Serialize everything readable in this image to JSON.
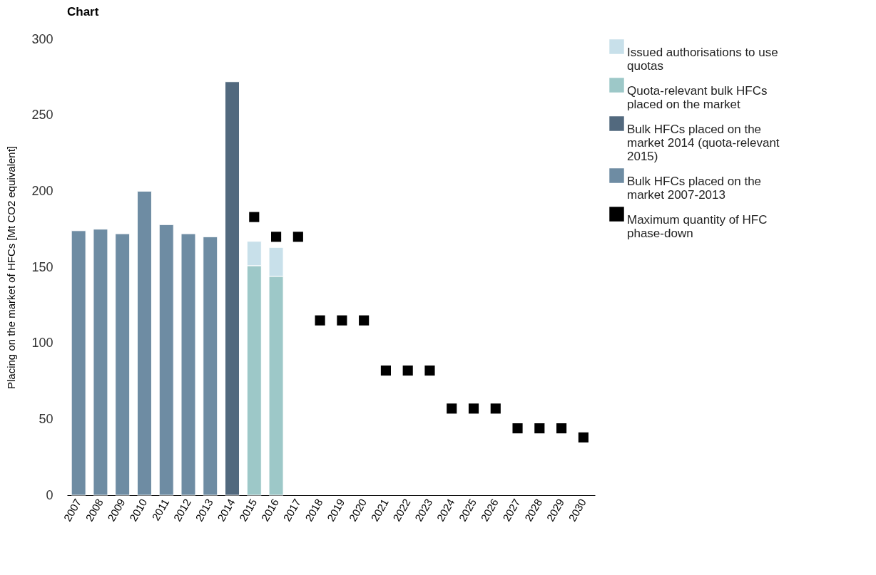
{
  "chart_data": {
    "type": "bar",
    "title": "Chart",
    "ylabel": "Placing on the market of HFCs [Mt CO2 equivalent]",
    "categories": [
      "2007",
      "2008",
      "2009",
      "2010",
      "2011",
      "2012",
      "2013",
      "2014",
      "2015",
      "2016",
      "2017",
      "2018",
      "2019",
      "2020",
      "2021",
      "2022",
      "2023",
      "2024",
      "2025",
      "2026",
      "2027",
      "2028",
      "2029",
      "2030"
    ],
    "stacked": true,
    "series": [
      {
        "name": "Bulk HFCs placed on the market 2007-2013",
        "color": "#6e8ca3",
        "values": [
          174,
          175,
          172,
          200,
          178,
          172,
          170,
          null,
          null,
          null,
          null,
          null,
          null,
          null,
          null,
          null,
          null,
          null,
          null,
          null,
          null,
          null,
          null,
          null
        ]
      },
      {
        "name": "Bulk HFCs placed on the market 2014 (quota-relevant 2015)",
        "color": "#52697e",
        "values": [
          null,
          null,
          null,
          null,
          null,
          null,
          null,
          272,
          null,
          null,
          null,
          null,
          null,
          null,
          null,
          null,
          null,
          null,
          null,
          null,
          null,
          null,
          null,
          null
        ]
      },
      {
        "name": "Quota-relevant bulk HFCs placed on the market",
        "color": "#9dc8c8",
        "values": [
          null,
          null,
          null,
          null,
          null,
          null,
          null,
          null,
          151,
          144,
          null,
          null,
          null,
          null,
          null,
          null,
          null,
          null,
          null,
          null,
          null,
          null,
          null,
          null
        ]
      },
      {
        "name": "Issued authorisations to use quotas",
        "color": "#c8e0ea",
        "values": [
          null,
          null,
          null,
          null,
          null,
          null,
          null,
          null,
          16,
          19,
          null,
          null,
          null,
          null,
          null,
          null,
          null,
          null,
          null,
          null,
          null,
          null,
          null,
          null
        ]
      },
      {
        "name": "Maximum quantity of HFC phase-down",
        "type": "scatter",
        "marker": "square",
        "color": "#000000",
        "values": [
          null,
          null,
          null,
          null,
          null,
          null,
          null,
          null,
          183,
          170,
          170,
          115,
          115,
          115,
          82,
          82,
          82,
          57,
          57,
          57,
          44,
          44,
          44,
          38
        ]
      }
    ],
    "ylim": [
      0,
      300
    ],
    "yticks": [
      0,
      50,
      100,
      150,
      200,
      250,
      300
    ],
    "grid": false,
    "legend": "top right"
  }
}
